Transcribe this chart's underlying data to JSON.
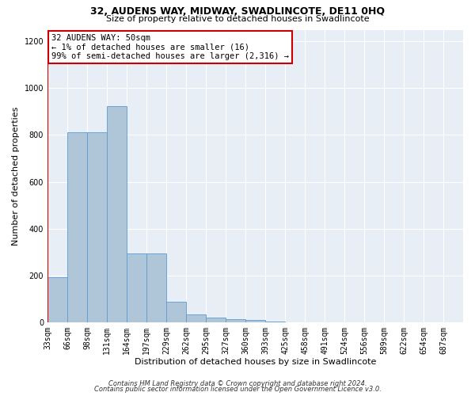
{
  "title1": "32, AUDENS WAY, MIDWAY, SWADLINCOTE, DE11 0HQ",
  "title2": "Size of property relative to detached houses in Swadlincote",
  "xlabel": "Distribution of detached houses by size in Swadlincote",
  "ylabel": "Number of detached properties",
  "footer1": "Contains HM Land Registry data © Crown copyright and database right 2024.",
  "footer2": "Contains public sector information licensed under the Open Government Licence v3.0.",
  "annotation_title": "32 AUDENS WAY: 50sqm",
  "annotation_line1": "← 1% of detached houses are smaller (16)",
  "annotation_line2": "99% of semi-detached houses are larger (2,316) →",
  "property_sqm": 50,
  "bin_labels": [
    "33sqm",
    "66sqm",
    "98sqm",
    "131sqm",
    "164sqm",
    "197sqm",
    "229sqm",
    "262sqm",
    "295sqm",
    "327sqm",
    "360sqm",
    "393sqm",
    "425sqm",
    "458sqm",
    "491sqm",
    "524sqm",
    "556sqm",
    "589sqm",
    "622sqm",
    "654sqm",
    "687sqm"
  ],
  "n_bins": 21,
  "bar_heights": [
    193,
    813,
    813,
    922,
    293,
    293,
    88,
    34,
    20,
    13,
    11,
    2,
    0,
    1,
    0,
    0,
    0,
    0,
    0,
    0,
    0
  ],
  "bar_color": "#aec6d8",
  "bar_edge_color": "#5b9bd5",
  "vline_color": "#cc0000",
  "vline_bin": 0,
  "ylim": [
    0,
    1250
  ],
  "yticks": [
    0,
    200,
    400,
    600,
    800,
    1000,
    1200
  ],
  "background_color": "#e8eef5",
  "grid_color": "#ffffff",
  "annotation_box_color": "#ffffff",
  "annotation_border_color": "#cc0000",
  "title1_fontsize": 9,
  "title2_fontsize": 8,
  "ylabel_fontsize": 8,
  "xlabel_fontsize": 8,
  "tick_fontsize": 7,
  "ann_fontsize": 7.5,
  "footer_fontsize": 6
}
